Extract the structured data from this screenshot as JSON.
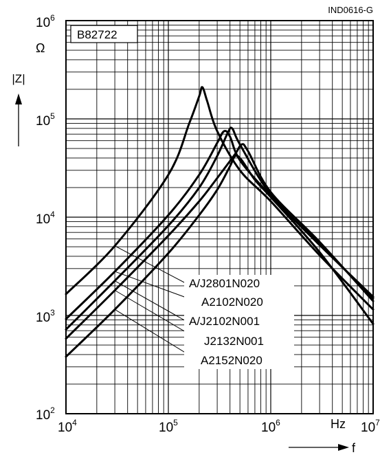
{
  "figure_id": "IND0616-G",
  "chart_data": {
    "type": "line",
    "title": "B82722",
    "xscale": "log",
    "yscale": "log",
    "xlim": [
      10000,
      10000000
    ],
    "ylim": [
      100,
      1000000
    ],
    "grid": true,
    "xlabel": "f",
    "xunit": "Hz",
    "ylabel": "|Z|",
    "yunit": "Ω",
    "x_ticks": [
      {
        "base": "10",
        "exp": "4"
      },
      {
        "base": "10",
        "exp": "5"
      },
      {
        "base": "10",
        "exp": "6"
      },
      {
        "base": "10",
        "exp": "7"
      }
    ],
    "y_ticks": [
      {
        "base": "10",
        "exp": "2"
      },
      {
        "base": "10",
        "exp": "3"
      },
      {
        "base": "10",
        "exp": "4"
      },
      {
        "base": "10",
        "exp": "5"
      },
      {
        "base": "10",
        "exp": "6"
      }
    ],
    "legend_placement": "lower-right inside plot",
    "series": [
      {
        "name": "A/J2801N020",
        "x": [
          10000,
          30000,
          100000,
          160000,
          200000,
          215000,
          240000,
          300000,
          500000,
          1000000,
          3000000,
          10000000
        ],
        "y": [
          1650,
          5100,
          27000,
          90000,
          170000,
          210000,
          150000,
          75000,
          30000,
          14500,
          4100,
          1150
        ]
      },
      {
        "name": "A2102N020",
        "x": [
          10000,
          30000,
          100000,
          200000,
          300000,
          350000,
          400000,
          500000,
          1000000,
          3000000,
          10000000
        ],
        "y": [
          920,
          2800,
          10500,
          27000,
          57000,
          75000,
          66000,
          38000,
          16500,
          5200,
          1550
        ]
      },
      {
        "name": "A/J2102N001",
        "x": [
          10000,
          30000,
          100000,
          200000,
          300000,
          380000,
          420000,
          500000,
          1000000,
          3000000,
          10000000
        ],
        "y": [
          720,
          2250,
          8200,
          20000,
          42000,
          72000,
          80000,
          55000,
          17000,
          5300,
          1500
        ]
      },
      {
        "name": "J2132N001",
        "x": [
          10000,
          30000,
          100000,
          200000,
          300000,
          450000,
          520000,
          600000,
          1000000,
          3000000,
          10000000
        ],
        "y": [
          580,
          1800,
          6500,
          14500,
          25000,
          44000,
          55000,
          47000,
          18000,
          5600,
          1400
        ]
      },
      {
        "name": "A2152N020",
        "x": [
          10000,
          30000,
          100000,
          200000,
          300000,
          400000,
          450000,
          520000,
          700000,
          1000000,
          3000000,
          10000000
        ],
        "y": [
          380,
          1150,
          4300,
          10500,
          19000,
          33000,
          42000,
          38000,
          24000,
          16000,
          4400,
          820
        ]
      }
    ]
  }
}
